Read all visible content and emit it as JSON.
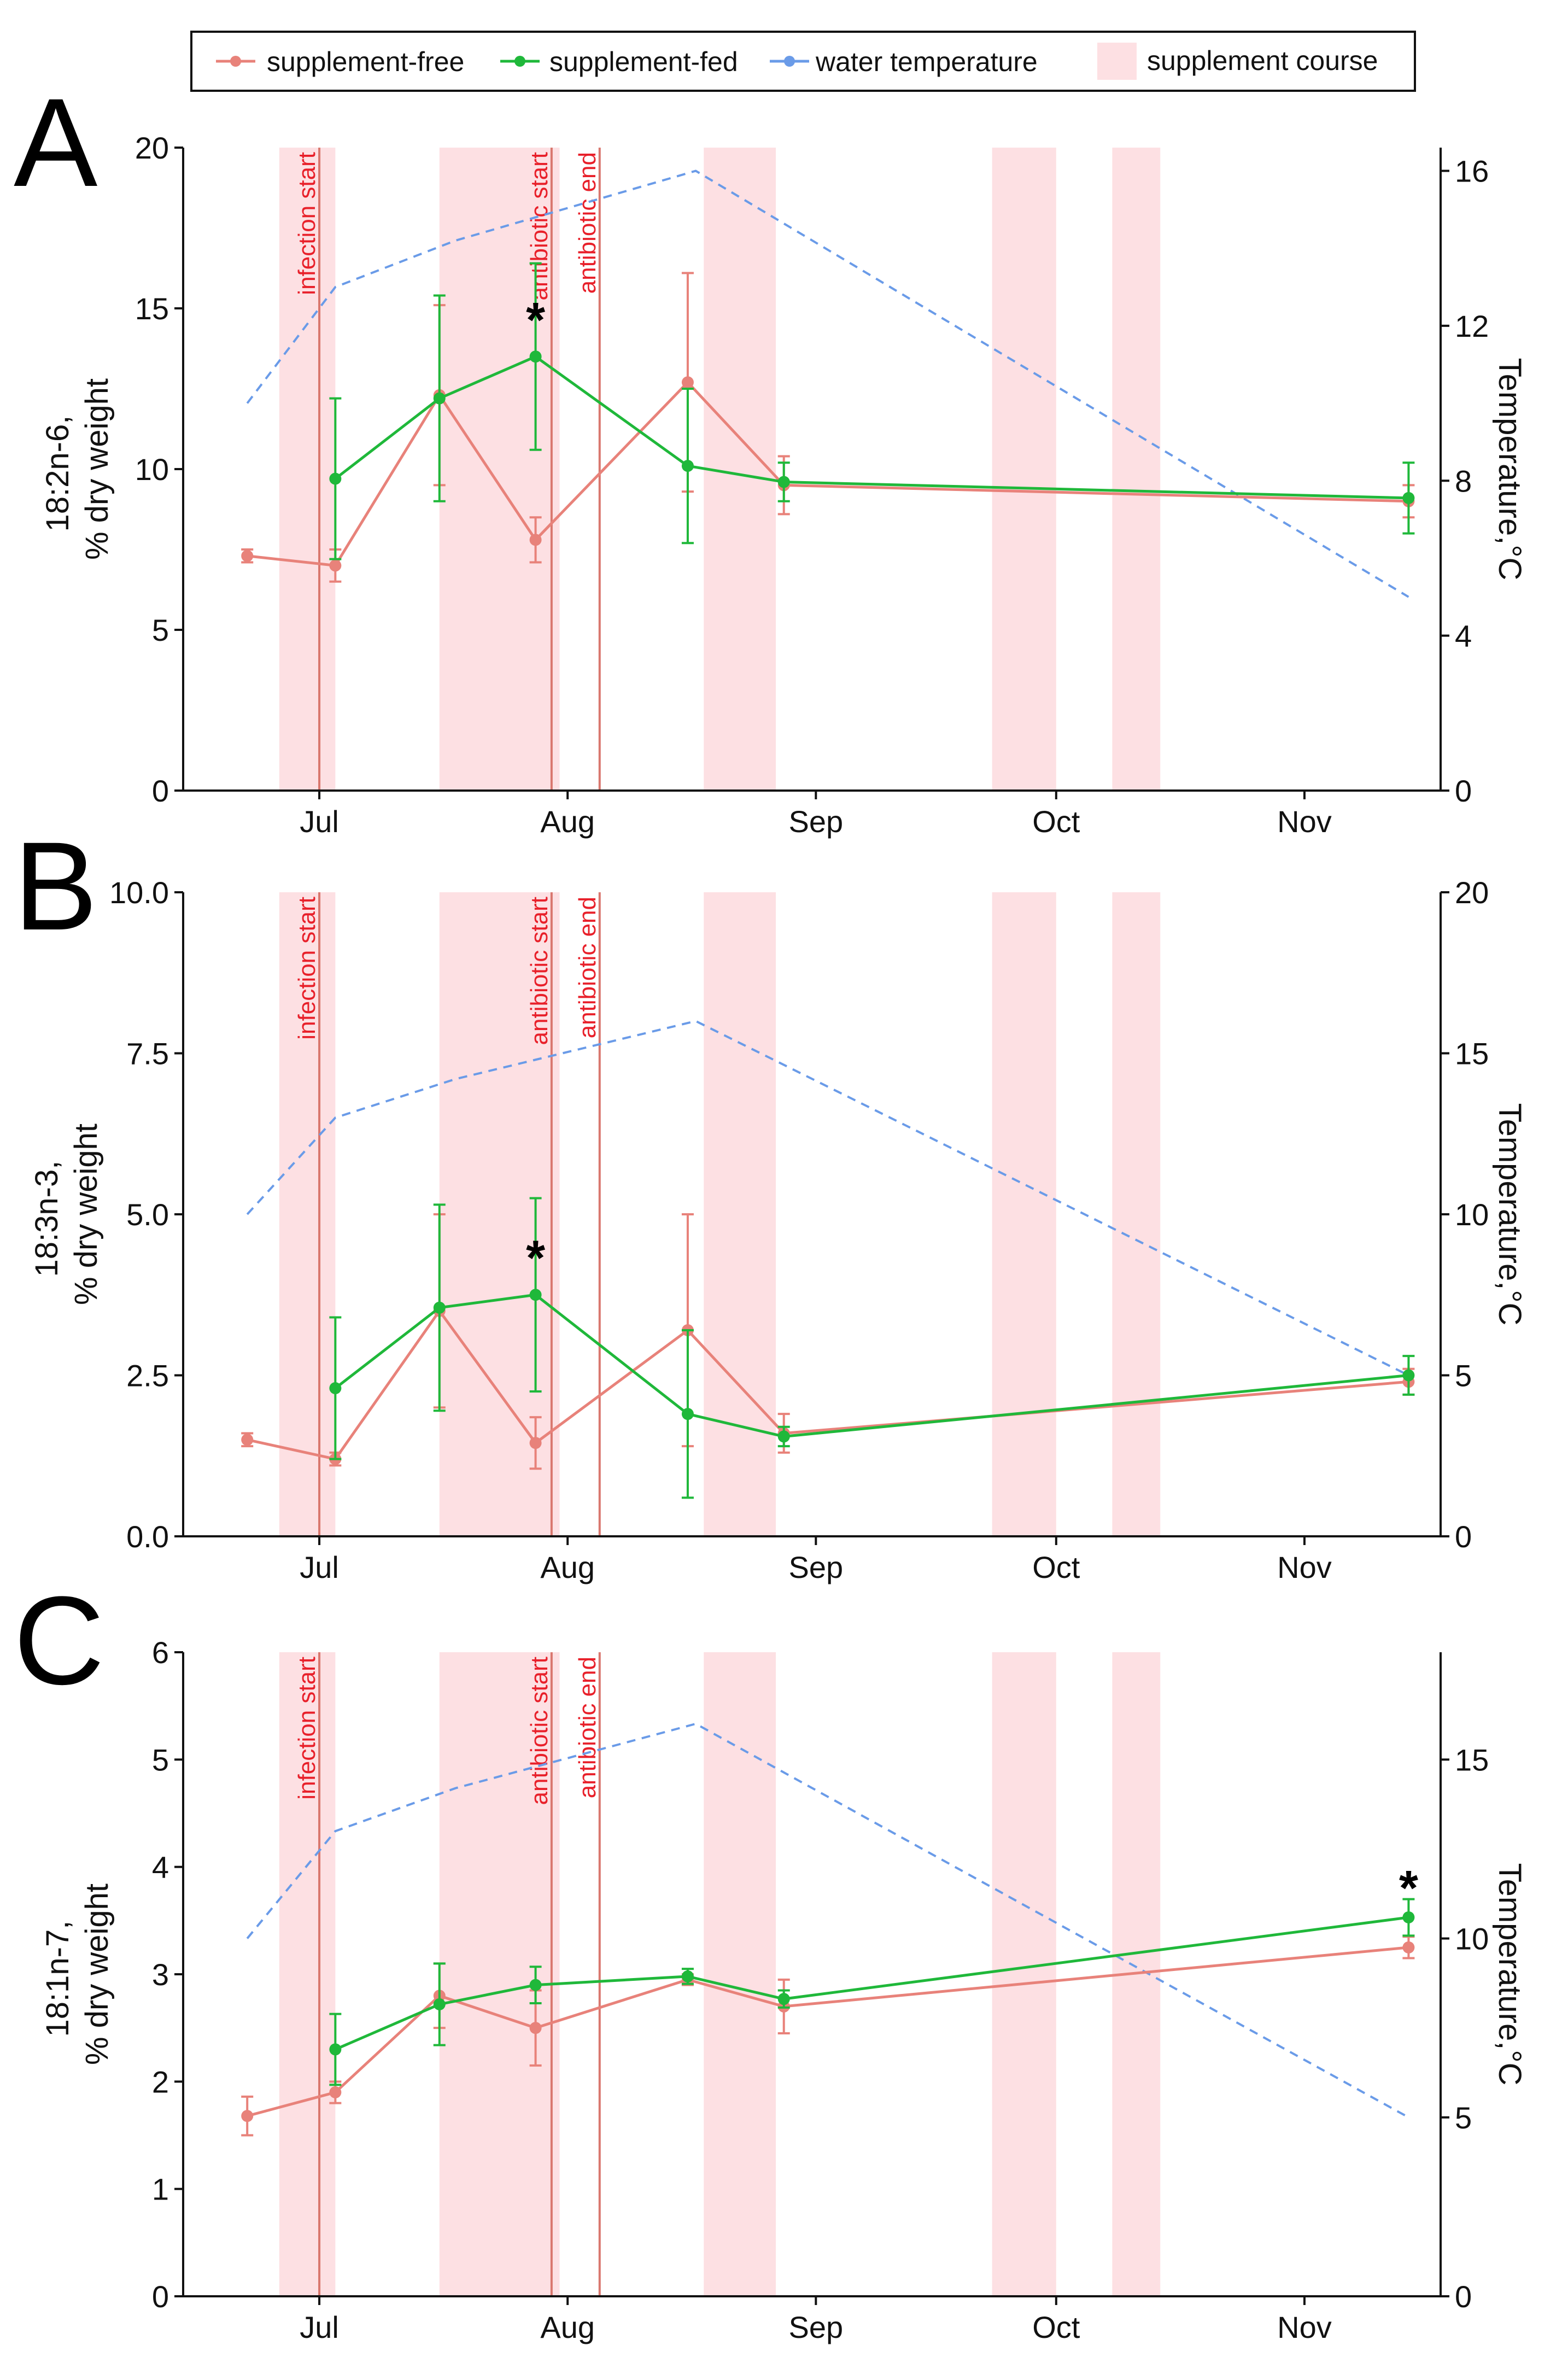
{
  "legend": {
    "items": [
      {
        "label": "supplement-free",
        "color": "#e8827a"
      },
      {
        "label": "supplement-fed",
        "color": "#1fb83a"
      },
      {
        "label": "water temperature",
        "color": "#6a9be8"
      },
      {
        "label": "supplement course",
        "color": "#fde0e3"
      }
    ]
  },
  "colors": {
    "free": "#e8827a",
    "fed": "#1fb83a",
    "water": "#6a9be8",
    "course": "#fde0e3",
    "event_line": "#d9776e",
    "event_text": "#e8202a",
    "axis": "#111111"
  },
  "shared": {
    "x_ticks": [
      {
        "label": "Jul",
        "day": 213
      },
      {
        "label": "Aug",
        "day": 244
      },
      {
        "label": "Sep",
        "day": 275
      },
      {
        "label": "Oct",
        "day": 305
      },
      {
        "label": "Nov",
        "day": 336
      }
    ],
    "x_range_day": [
      196,
      353
    ],
    "course_bands_day": [
      [
        208,
        215
      ],
      [
        228,
        243
      ],
      [
        261,
        270
      ],
      [
        297,
        305
      ],
      [
        312,
        318
      ]
    ],
    "events": [
      {
        "label": "infection start",
        "day": 213
      },
      {
        "label": "antibiotic start",
        "day": 242
      },
      {
        "label": "antibiotic end",
        "day": 248
      }
    ],
    "temperature_label": "Temperature,°C",
    "temperature_days": [
      204,
      215,
      230,
      260,
      349
    ],
    "temperature_c": [
      10,
      13,
      14.2,
      16,
      5
    ]
  },
  "chart_data": [
    {
      "type": "line",
      "panel": "A",
      "ylabel_line1": "18:2n-6,",
      "ylabel_line2": "% dry weight",
      "ylim": [
        0,
        20
      ],
      "y_ticks": [
        "0",
        "5",
        "10",
        "15",
        "20"
      ],
      "y_tick_values": [
        0,
        5,
        10,
        15,
        20
      ],
      "ylim_right": [
        0,
        16.6
      ],
      "y_ticks_right": [
        "0",
        "4",
        "8",
        "12",
        "16"
      ],
      "y_tick_values_right": [
        0,
        4,
        8,
        12,
        16
      ],
      "series": [
        {
          "name": "supplement-free",
          "days": [
            204,
            215,
            228,
            240,
            259,
            271,
            349
          ],
          "values": [
            7.3,
            7.0,
            12.3,
            7.8,
            12.7,
            9.5,
            9.0
          ],
          "err": [
            0.2,
            0.5,
            2.8,
            0.7,
            3.4,
            0.9,
            0.5
          ]
        },
        {
          "name": "supplement-fed",
          "days": [
            215,
            228,
            240,
            259,
            271,
            349
          ],
          "values": [
            9.7,
            12.2,
            13.5,
            10.1,
            9.6,
            9.1
          ],
          "err": [
            2.5,
            3.2,
            2.9,
            2.4,
            0.6,
            1.1
          ]
        }
      ],
      "significance": [
        {
          "label": "*",
          "day": 240,
          "value": 14.8
        }
      ]
    },
    {
      "type": "line",
      "panel": "B",
      "ylabel_line1": "18:3n-3,",
      "ylabel_line2": "% dry weight",
      "ylim": [
        0,
        10
      ],
      "y_ticks": [
        "0.0",
        "2.5",
        "5.0",
        "7.5",
        "10.0"
      ],
      "y_tick_values": [
        0,
        2.5,
        5,
        7.5,
        10
      ],
      "ylim_right": [
        0,
        20
      ],
      "y_ticks_right": [
        "0",
        "5",
        "10",
        "15",
        "20"
      ],
      "y_tick_values_right": [
        0,
        5,
        10,
        15,
        20
      ],
      "series": [
        {
          "name": "supplement-free",
          "days": [
            204,
            215,
            228,
            240,
            259,
            271,
            349
          ],
          "values": [
            1.5,
            1.2,
            3.5,
            1.45,
            3.2,
            1.6,
            2.4
          ],
          "err": [
            0.1,
            0.1,
            1.5,
            0.4,
            1.8,
            0.3,
            0.2
          ]
        },
        {
          "name": "supplement-fed",
          "days": [
            215,
            228,
            240,
            259,
            271,
            349
          ],
          "values": [
            2.3,
            3.55,
            3.75,
            1.9,
            1.55,
            2.5
          ],
          "err": [
            1.1,
            1.6,
            1.5,
            1.3,
            0.15,
            0.3
          ]
        }
      ],
      "significance": [
        {
          "label": "*",
          "day": 240,
          "value": 4.4
        }
      ]
    },
    {
      "type": "line",
      "panel": "C",
      "ylabel_line1": "18:1n-7,",
      "ylabel_line2": "% dry weight",
      "ylim": [
        0,
        6
      ],
      "y_ticks": [
        "0",
        "1",
        "2",
        "3",
        "4",
        "5",
        "6"
      ],
      "y_tick_values": [
        0,
        1,
        2,
        3,
        4,
        5,
        6
      ],
      "ylim_right": [
        0,
        18
      ],
      "y_ticks_right": [
        "0",
        "5",
        "10",
        "15"
      ],
      "y_tick_values_right": [
        0,
        5,
        10,
        15
      ],
      "series": [
        {
          "name": "supplement-free",
          "days": [
            204,
            215,
            228,
            240,
            259,
            271,
            349
          ],
          "values": [
            1.68,
            1.9,
            2.8,
            2.5,
            2.95,
            2.7,
            3.25
          ],
          "err": [
            0.18,
            0.1,
            0.3,
            0.35,
            0.05,
            0.25,
            0.1
          ]
        },
        {
          "name": "supplement-fed",
          "days": [
            215,
            228,
            240,
            259,
            271,
            349
          ],
          "values": [
            2.3,
            2.72,
            2.9,
            2.98,
            2.77,
            3.53
          ],
          "err": [
            0.33,
            0.38,
            0.17,
            0.07,
            0.08,
            0.17
          ]
        }
      ],
      "significance": [
        {
          "label": "*",
          "day": 349,
          "value": 3.85
        }
      ]
    }
  ]
}
